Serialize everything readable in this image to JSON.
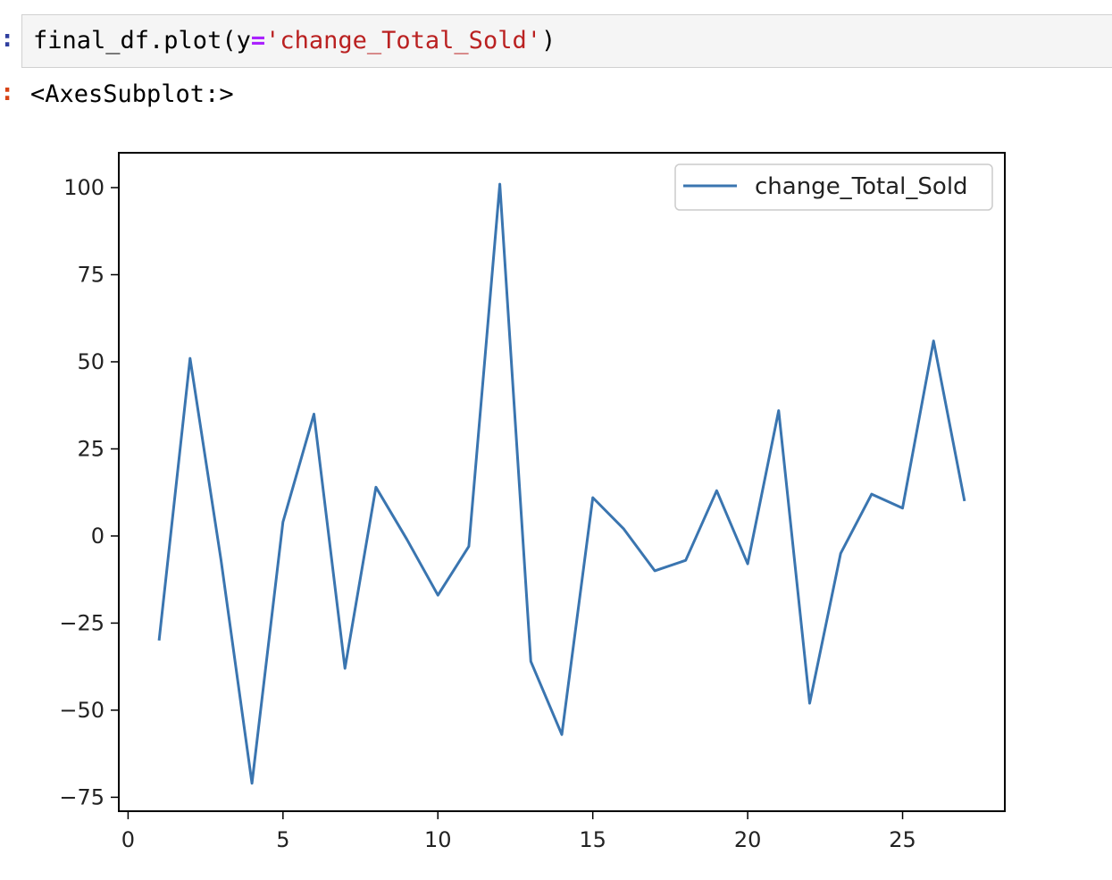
{
  "cell": {
    "input_prompt": ":",
    "output_prompt": ":",
    "code": {
      "part1": "final_df.plot(y",
      "op": "=",
      "string": "'change_Total_Sold'",
      "part2": ")"
    },
    "output_text": "<AxesSubplot:>"
  },
  "colors": {
    "line": "#3a75b0",
    "string": "#ba2121",
    "operator": "#aa22ff",
    "input_prompt": "#303f9f",
    "output_prompt": "#d84315"
  },
  "chart_data": {
    "type": "line",
    "x": [
      1,
      2,
      3,
      4,
      5,
      6,
      7,
      8,
      9,
      10,
      11,
      12,
      13,
      14,
      15,
      16,
      17,
      18,
      19,
      20,
      21,
      22,
      23,
      24,
      25,
      26,
      27
    ],
    "series": [
      {
        "name": "change_Total_Sold",
        "values": [
          -30,
          51,
          -7,
          -71,
          4,
          35,
          -38,
          14,
          -1,
          -17,
          -3,
          101,
          -36,
          -57,
          11,
          2,
          -10,
          -7,
          13,
          -8,
          36,
          -48,
          -5,
          12,
          8,
          56,
          10
        ]
      }
    ],
    "xticks": [
      "0",
      "5",
      "10",
      "15",
      "20",
      "25"
    ],
    "yticks": [
      "−75",
      "−50",
      "−25",
      "0",
      "25",
      "50",
      "75",
      "100"
    ],
    "xlim": [
      -0.3,
      28.3
    ],
    "ylim": [
      -79,
      110
    ],
    "grid": false,
    "legend": "top-right"
  }
}
